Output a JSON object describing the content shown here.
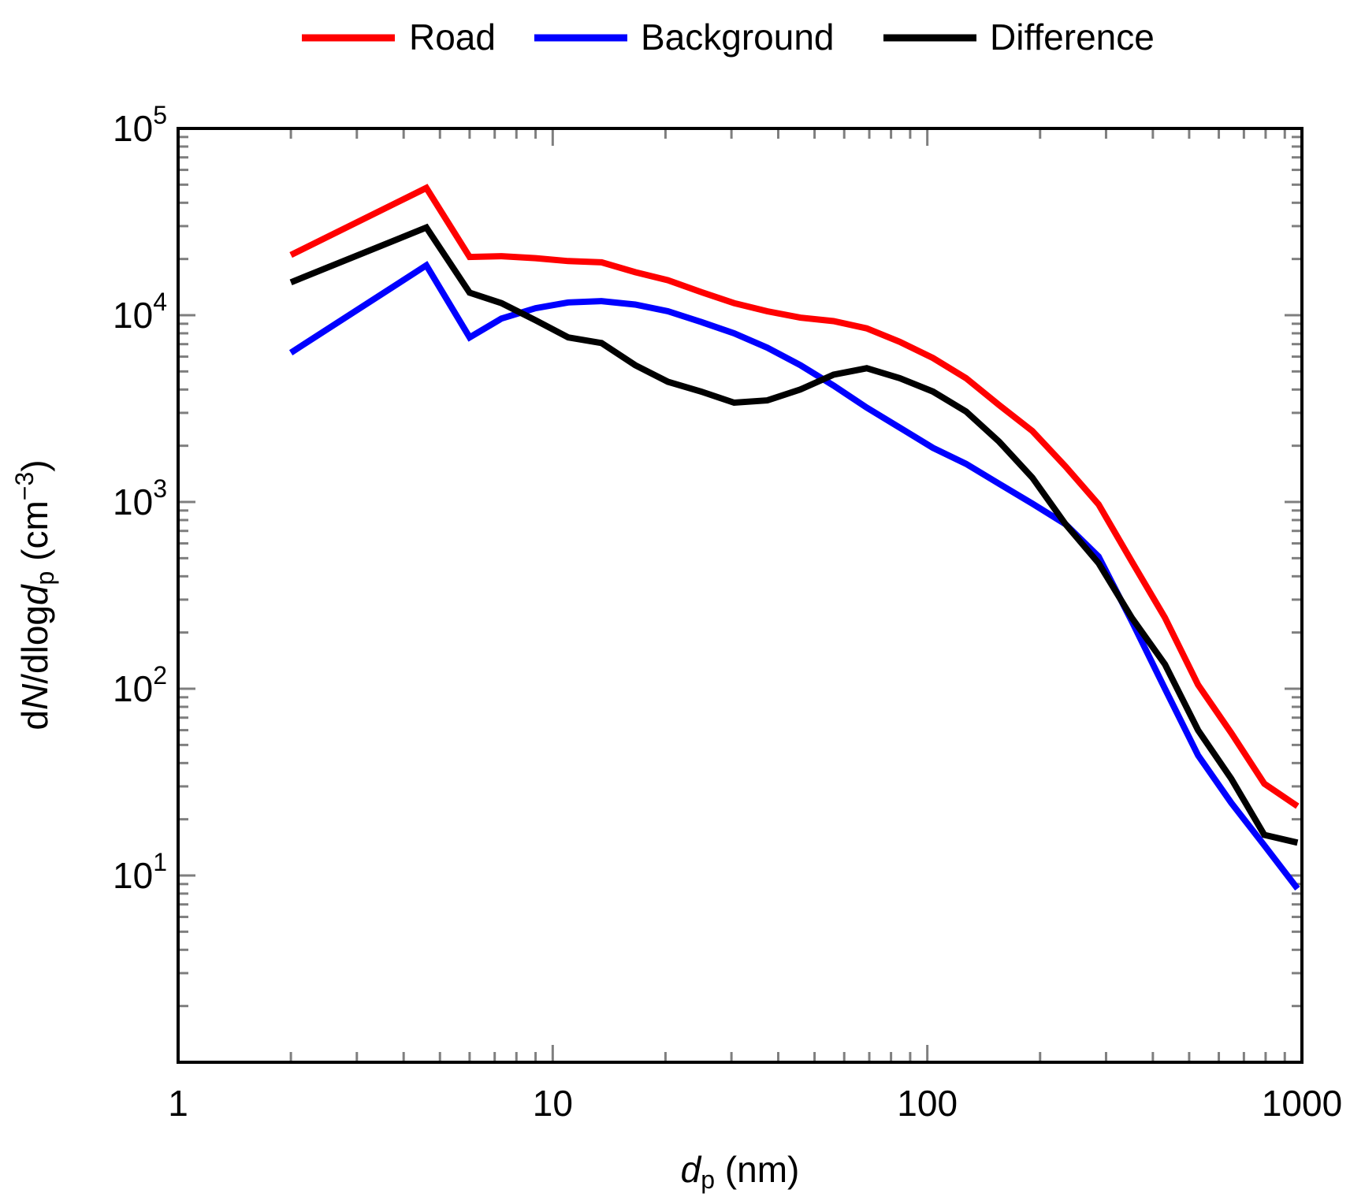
{
  "chart_data": {
    "type": "line",
    "xscale": "log",
    "yscale": "log",
    "xlim": [
      1,
      1000
    ],
    "ylim": [
      1,
      100000
    ],
    "xlabel": {
      "main": "d",
      "sub": "p",
      "unit": " (nm)"
    },
    "ylabel": {
      "pre": "d",
      "italic": "N",
      "mid": "/dlog",
      "italic2": "d",
      "sub": "p",
      "post": " (cm",
      "sup": "−3",
      "close": ")"
    },
    "x_tick_labels": [
      "1",
      "10",
      "100",
      "1000"
    ],
    "y_tick_labels": [
      {
        "base": "10",
        "exp": "1"
      },
      {
        "base": "10",
        "exp": "2"
      },
      {
        "base": "10",
        "exp": "3"
      },
      {
        "base": "10",
        "exp": "4"
      },
      {
        "base": "10",
        "exp": "5"
      }
    ],
    "legend_position": "top-center",
    "grid": false,
    "series": [
      {
        "name": "Road",
        "color": "#ff0000",
        "x": [
          2.0,
          4.6,
          6.0,
          7.3,
          9.0,
          11.0,
          13.5,
          16.6,
          20.3,
          24.9,
          30.5,
          37.4,
          45.8,
          56.2,
          68.9,
          84.4,
          103.5,
          126.9,
          155.6,
          190.7,
          233.8,
          286.6,
          351.4,
          430.8,
          528.2,
          647.5,
          793.8,
          973.1
        ],
        "y": [
          21000,
          48000,
          20500,
          20700,
          20200,
          19500,
          19200,
          17000,
          15400,
          13300,
          11600,
          10500,
          9700,
          9300,
          8500,
          7200,
          5900,
          4600,
          3300,
          2400,
          1550,
          970,
          480,
          240,
          105,
          58,
          31,
          23.5
        ]
      },
      {
        "name": "Background",
        "color": "#0000ff",
        "x": [
          2.0,
          4.6,
          6.0,
          7.3,
          9.0,
          11.0,
          13.5,
          16.6,
          20.3,
          24.9,
          30.5,
          37.4,
          45.8,
          56.2,
          68.9,
          84.4,
          103.5,
          126.9,
          155.6,
          190.7,
          233.8,
          286.6,
          351.4,
          430.8,
          528.2,
          647.5,
          793.8,
          973.1
        ],
        "y": [
          6300,
          18500,
          7600,
          9600,
          10900,
          11700,
          11900,
          11400,
          10500,
          9200,
          8000,
          6700,
          5400,
          4200,
          3200,
          2500,
          1950,
          1600,
          1250,
          980,
          760,
          510,
          230,
          100,
          44,
          24.5,
          14.5,
          8.5
        ]
      },
      {
        "name": "Difference",
        "color": "#000000",
        "x": [
          2.0,
          4.6,
          6.0,
          7.3,
          9.0,
          11.0,
          13.5,
          16.6,
          20.3,
          24.9,
          30.5,
          37.4,
          45.8,
          56.2,
          68.9,
          84.4,
          103.5,
          126.9,
          155.6,
          190.7,
          233.8,
          286.6,
          351.4,
          430.8,
          528.2,
          647.5,
          793.8,
          973.1
        ],
        "y": [
          15000,
          29500,
          13200,
          11600,
          9400,
          7600,
          7100,
          5400,
          4400,
          3900,
          3400,
          3500,
          4000,
          4800,
          5200,
          4600,
          3900,
          3050,
          2100,
          1350,
          760,
          470,
          240,
          135,
          60,
          33,
          16.5,
          15
        ]
      }
    ]
  }
}
